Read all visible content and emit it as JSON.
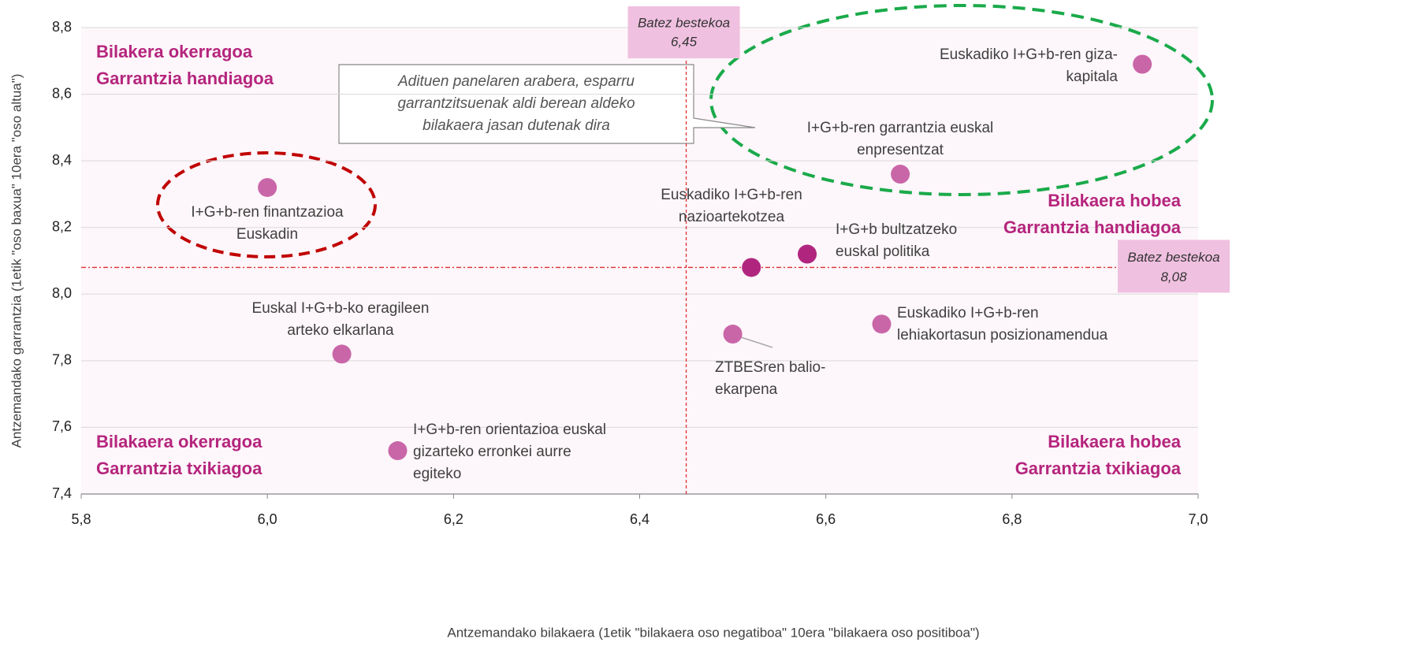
{
  "chart_data": {
    "type": "scatter",
    "x_label": "Antzemandako bilakaera (1etik \"bilakaera oso negatiboa\" 10era \"bilakaera oso positiboa\")",
    "y_label": "Antzemandako garrantzia (1etik \"oso baxua\" 10era \"oso altua\")",
    "xlim": [
      5.8,
      7.0
    ],
    "ylim": [
      7.4,
      8.8
    ],
    "xticks": [
      {
        "value": 5.8,
        "label": "5,8"
      },
      {
        "value": 6.0,
        "label": "6,0"
      },
      {
        "value": 6.2,
        "label": "6,2"
      },
      {
        "value": 6.4,
        "label": "6,4"
      },
      {
        "value": 6.6,
        "label": "6,6"
      },
      {
        "value": 6.8,
        "label": "6,8"
      },
      {
        "value": 7.0,
        "label": "7,0"
      }
    ],
    "yticks": [
      {
        "value": 7.4,
        "label": "7,4"
      },
      {
        "value": 7.6,
        "label": "7,6"
      },
      {
        "value": 7.8,
        "label": "7,8"
      },
      {
        "value": 8.0,
        "label": "8,0"
      },
      {
        "value": 8.2,
        "label": "8,2"
      },
      {
        "value": 8.4,
        "label": "8,4"
      },
      {
        "value": 8.6,
        "label": "8,6"
      },
      {
        "value": 8.8,
        "label": "8,8"
      }
    ],
    "grid": true,
    "points": [
      {
        "label": [
          "Euskadiko I+G+b-ren giza-",
          "kapitala"
        ],
        "x": 6.94,
        "y": 8.69,
        "color": "#c966a8"
      },
      {
        "label": [
          "I+G+b-ren garrantzia euskal",
          "enpresentzat"
        ],
        "x": 6.68,
        "y": 8.36,
        "color": "#c966a8"
      },
      {
        "label": [
          "I+G+b-ren finantzazioa",
          "Euskadin"
        ],
        "x": 6.0,
        "y": 8.32,
        "color": "#c966a8"
      },
      {
        "label": [
          "Euskadiko I+G+b-ren",
          "nazioartekotzea"
        ],
        "x": 6.52,
        "y": 8.08,
        "color": "#b0267f"
      },
      {
        "label": [
          "I+G+b bultzatzeko",
          "euskal politika"
        ],
        "x": 6.58,
        "y": 8.12,
        "color": "#b0267f"
      },
      {
        "label": [
          "Euskal I+G+b-ko eragileen",
          "arteko elkarlana"
        ],
        "x": 6.08,
        "y": 7.82,
        "color": "#c966a8"
      },
      {
        "label": [
          "Euskadiko I+G+b-ren",
          "lehiakortasun posizionamendua"
        ],
        "x": 6.66,
        "y": 7.91,
        "color": "#c966a8"
      },
      {
        "label": [
          "ZTBESren balio-",
          "ekarpena"
        ],
        "x": 6.5,
        "y": 7.88,
        "color": "#c966a8"
      },
      {
        "label": [
          "I+G+b-ren orientazioa euskal",
          "gizarteko erronkei aurre",
          "egiteko"
        ],
        "x": 6.14,
        "y": 7.53,
        "color": "#c966a8"
      }
    ],
    "x_average": {
      "value": 6.45,
      "title": "Batez bestekoa",
      "label": "6,45"
    },
    "y_average": {
      "value": 8.08,
      "title": "Batez bestekoa",
      "label": "8,08"
    },
    "quadrants": [
      [
        "Bilakera okerragoa",
        "Garrantzia handiagoa"
      ],
      [
        "Bilakaera hobea",
        "Garrantzia handiagoa"
      ],
      [
        "Bilakaera okerragoa",
        "Garrantzia txikiagoa"
      ],
      [
        "Bilakaera hobea",
        "Garrantzia txikiagoa"
      ]
    ],
    "annotation": [
      "Adituen panelaren arabera, esparru",
      "garrantzitsuenak aldi berean aldeko",
      "bilakaera jasan dutenak dira"
    ]
  }
}
